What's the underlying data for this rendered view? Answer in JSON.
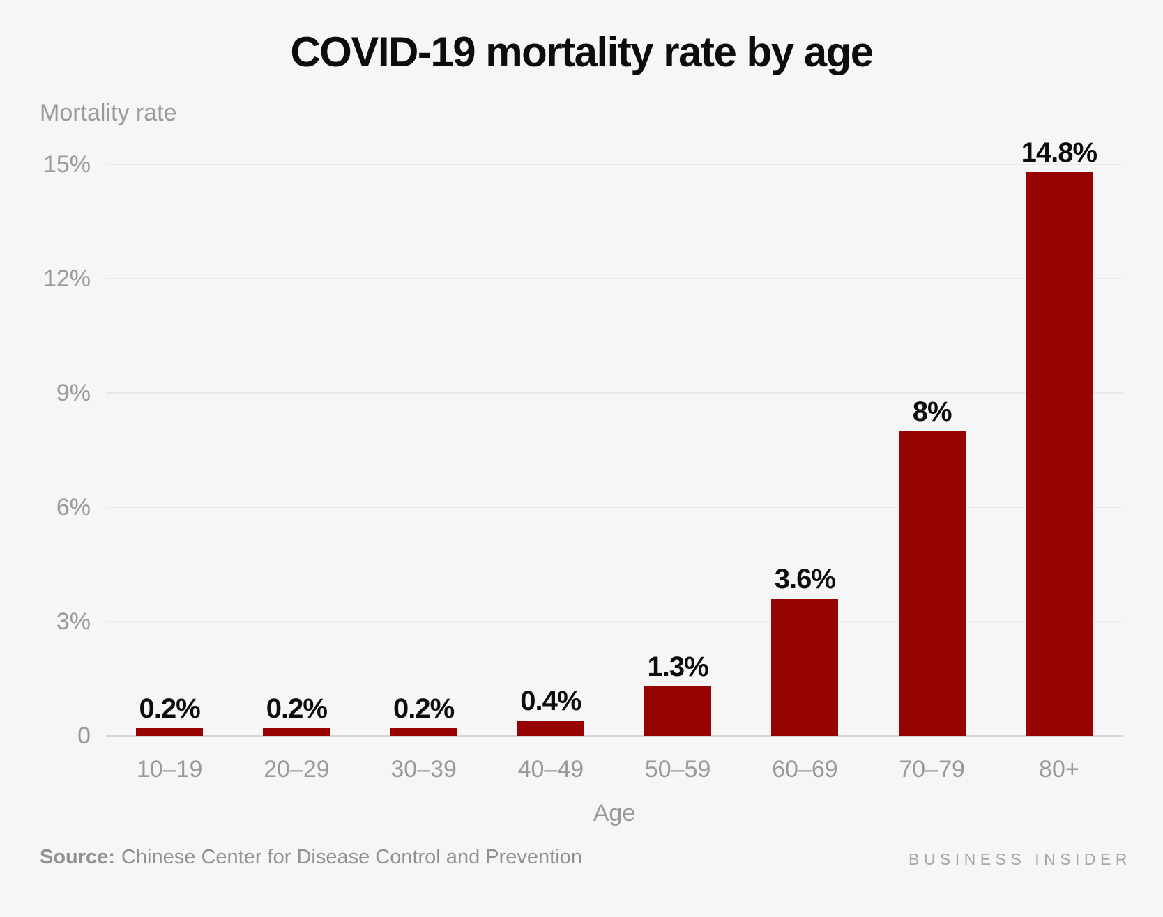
{
  "chart_data": {
    "type": "bar",
    "title": "COVID-19 mortality rate by age",
    "ylabel": "Mortality rate",
    "xlabel": "Age",
    "categories": [
      "10–19",
      "20–29",
      "30–39",
      "40–49",
      "50–59",
      "60–69",
      "70–79",
      "80+"
    ],
    "values": [
      0.2,
      0.2,
      0.2,
      0.4,
      1.3,
      3.6,
      8,
      14.8
    ],
    "value_labels": [
      "0.2%",
      "0.2%",
      "0.2%",
      "0.4%",
      "1.3%",
      "3.6%",
      "8%",
      "14.8%"
    ],
    "y_ticks": [
      {
        "value": 0,
        "label": "0"
      },
      {
        "value": 3,
        "label": "3%"
      },
      {
        "value": 6,
        "label": "6%"
      },
      {
        "value": 9,
        "label": "9%"
      },
      {
        "value": 12,
        "label": "12%"
      },
      {
        "value": 15,
        "label": "15%"
      }
    ],
    "ylim": [
      0,
      15
    ],
    "grid": "horizontal",
    "legend": "none"
  },
  "footer": {
    "source_label": "Source:",
    "source_text": "Chinese Center for Disease Control and Prevention",
    "brand": "BUSINESS INSIDER"
  },
  "colors": {
    "background": "#f6f6f6",
    "bar": "#970202",
    "title": "#0d0d0d",
    "value_label": "#0d0d0d",
    "axis_text": "#98999b",
    "gridline": "#e9e9e9",
    "baseline": "#d5d5d5",
    "source_text": "#8f9192",
    "brand": "#a6a6a6"
  }
}
